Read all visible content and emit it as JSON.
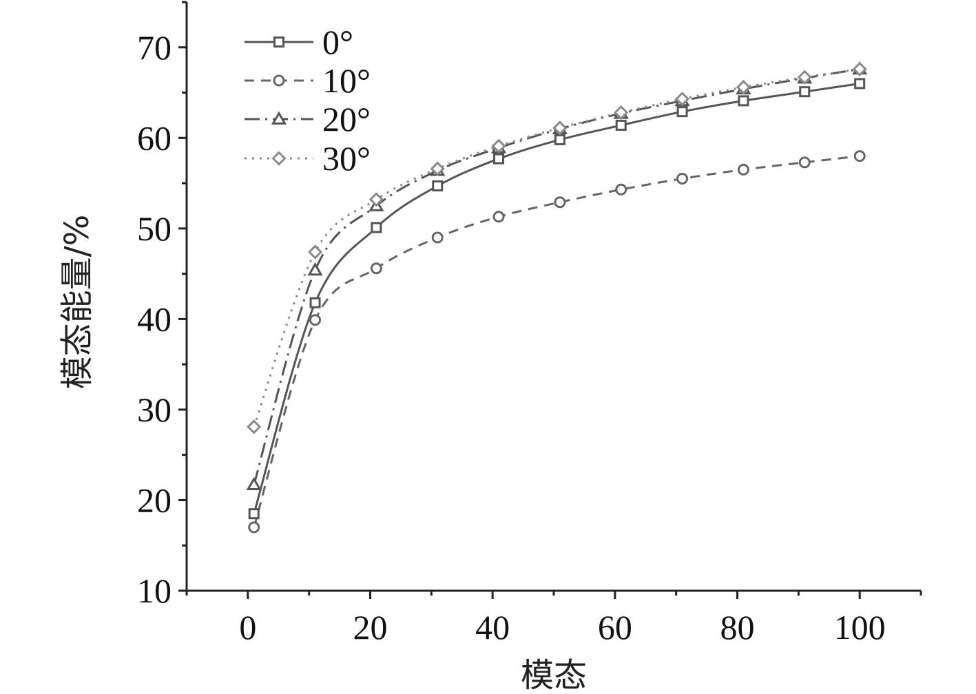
{
  "chart_data": {
    "type": "line",
    "title": "",
    "xlabel": "模态",
    "ylabel": "模态能量/%",
    "xlim": [
      -10,
      110
    ],
    "ylim": [
      10,
      75
    ],
    "xticks": [
      0,
      20,
      40,
      60,
      80,
      100
    ],
    "xtick_labels": [
      "0",
      "20",
      "40",
      "60",
      "80",
      "100"
    ],
    "yticks": [
      10,
      20,
      30,
      40,
      50,
      60,
      70
    ],
    "ytick_labels": [
      "10",
      "20",
      "30",
      "40",
      "50",
      "60",
      "70"
    ],
    "grid": false,
    "legend_position": "top-left",
    "x": [
      1,
      11,
      21,
      31,
      41,
      51,
      61,
      71,
      81,
      91,
      100
    ],
    "series": [
      {
        "name": "0°",
        "marker": "square",
        "dash": "solid",
        "color": "#555555",
        "values": [
          18.5,
          41.8,
          50.1,
          54.7,
          57.7,
          59.8,
          61.4,
          62.9,
          64.1,
          65.1,
          66.0
        ]
      },
      {
        "name": "10°",
        "marker": "circle",
        "dash": "dashed",
        "color": "#666666",
        "values": [
          17.0,
          39.9,
          45.6,
          49.0,
          51.3,
          52.9,
          54.3,
          55.5,
          56.5,
          57.3,
          58.0
        ]
      },
      {
        "name": "20°",
        "marker": "triangle",
        "dash": "dashdot",
        "color": "#555555",
        "values": [
          21.7,
          45.4,
          52.5,
          56.4,
          58.9,
          61.0,
          62.7,
          64.1,
          65.4,
          66.6,
          67.6
        ]
      },
      {
        "name": "30°",
        "marker": "diamond",
        "dash": "dotted",
        "color": "#8a8a8a",
        "values": [
          28.1,
          47.4,
          53.2,
          56.6,
          59.1,
          61.1,
          62.8,
          64.3,
          65.6,
          66.7,
          67.6
        ]
      }
    ]
  }
}
